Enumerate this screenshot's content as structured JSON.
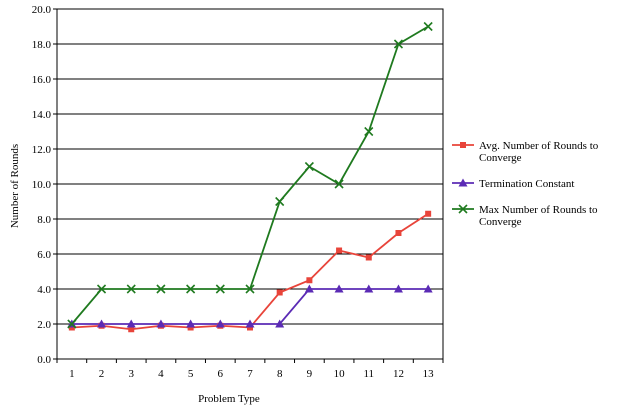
{
  "chart_data": {
    "type": "line",
    "xlabel": "Problem Type",
    "ylabel": "Number of Rounds",
    "categories": [
      "1",
      "2",
      "3",
      "4",
      "5",
      "6",
      "7",
      "8",
      "9",
      "10",
      "11",
      "12",
      "13"
    ],
    "ylim": [
      0,
      20
    ],
    "yticks": [
      "0.0",
      "2.0",
      "4.0",
      "6.0",
      "8.0",
      "10.0",
      "12.0",
      "14.0",
      "16.0",
      "18.0",
      "20.0"
    ],
    "grid": "horizontal",
    "legend_position": "right",
    "series": [
      {
        "name": "Avg. Number of Rounds to Converge",
        "legend_lines": [
          "Avg. Number of Rounds to",
          "Converge"
        ],
        "color": "#e8443a",
        "marker": "square",
        "values": [
          1.8,
          1.9,
          1.7,
          1.9,
          1.8,
          1.9,
          1.8,
          3.8,
          4.5,
          6.2,
          5.8,
          7.2,
          8.3
        ]
      },
      {
        "name": "Termination Constant",
        "legend_lines": [
          "Termination Constant"
        ],
        "color": "#5b2bb5",
        "marker": "triangle",
        "values": [
          2,
          2,
          2,
          2,
          2,
          2,
          2,
          2,
          4,
          4,
          4,
          4,
          4
        ]
      },
      {
        "name": "Max Number of Rounds to Converge",
        "legend_lines": [
          "Max Number of Rounds to",
          "Converge"
        ],
        "color": "#1f7a1f",
        "marker": "x",
        "values": [
          2,
          4,
          4,
          4,
          4,
          4,
          4,
          9,
          11,
          10,
          13,
          18,
          19
        ]
      }
    ]
  }
}
